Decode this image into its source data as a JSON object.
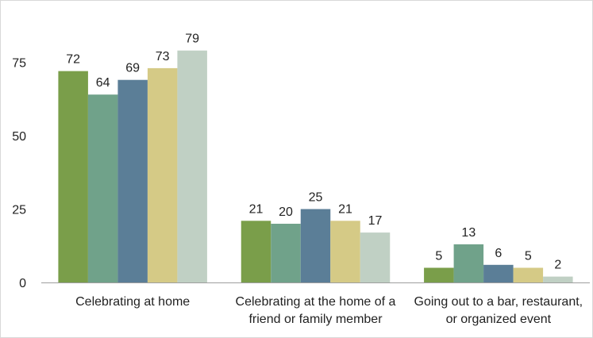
{
  "chart_data": {
    "type": "bar",
    "title": "",
    "xlabel": "",
    "ylabel": "",
    "ylim": [
      0,
      85
    ],
    "yticks": [
      0,
      25,
      50,
      75
    ],
    "grid": false,
    "legend": "none",
    "categories": [
      [
        "Celebrating at home"
      ],
      [
        "Celebrating at the home of a",
        "friend or family member"
      ],
      [
        "Going out to a bar, restaurant,",
        "or organized event"
      ]
    ],
    "series": [
      {
        "color": "#7a9e4a",
        "values": [
          72,
          21,
          5
        ]
      },
      {
        "color": "#70a28a",
        "values": [
          64,
          20,
          13
        ]
      },
      {
        "color": "#5b7e97",
        "values": [
          69,
          25,
          6
        ]
      },
      {
        "color": "#d5ca86",
        "values": [
          73,
          21,
          5
        ]
      },
      {
        "color": "#c0d0c4",
        "values": [
          79,
          17,
          2
        ]
      }
    ]
  }
}
